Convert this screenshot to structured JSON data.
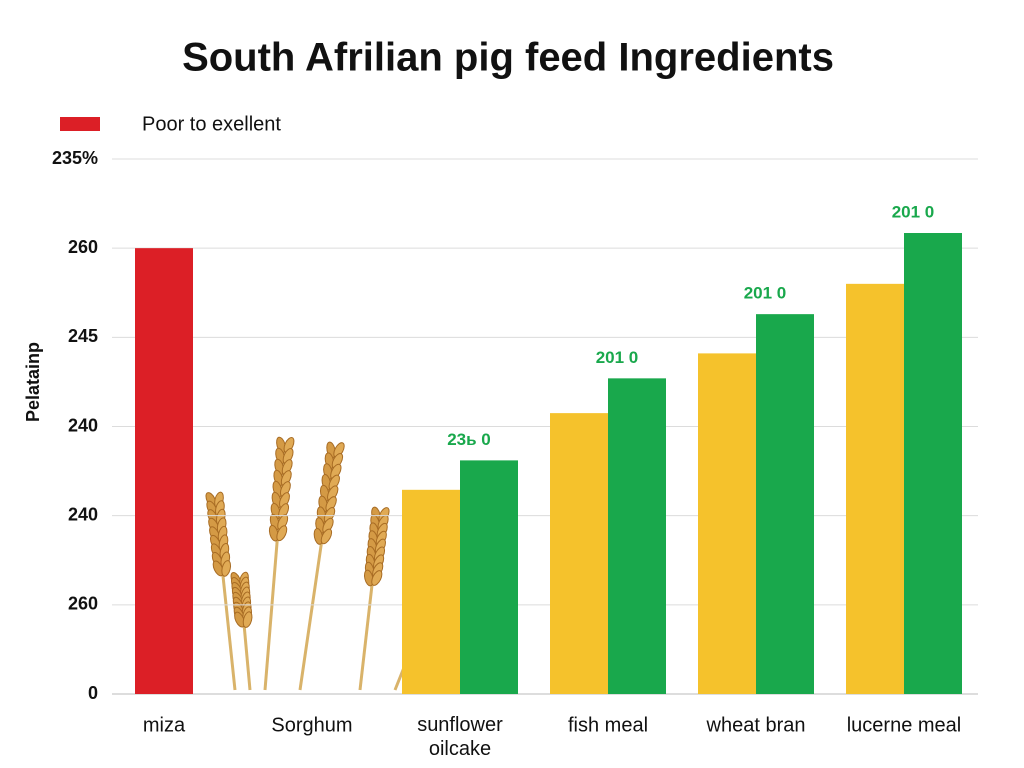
{
  "chart_data": {
    "type": "bar",
    "title": "South Afrilian pig feed Ingredients",
    "y_label": "Pelatainp",
    "categories": [
      "miza",
      "Sorghum",
      "sunflower oilcake",
      "fish meal",
      "wheat bran",
      "lucerne meal"
    ],
    "series": [
      {
        "name": "Poor to exellent",
        "color": "#dc1f26",
        "values": [
          5.0,
          null,
          null,
          null,
          null,
          null
        ]
      },
      {
        "color": "#f5c22c",
        "values": [
          null,
          null,
          2.29,
          3.15,
          3.82,
          4.6
        ]
      },
      {
        "color": "#19a84c",
        "values": [
          null,
          null,
          2.62,
          3.54,
          4.26,
          5.17
        ]
      }
    ],
    "annotations": [
      null,
      null,
      "23ь 0",
      "201 0",
      "201 0",
      "201 0"
    ],
    "ylim": [
      0,
      6
    ],
    "yticks": [
      {
        "value": 0,
        "label": "0"
      },
      {
        "value": 1,
        "label": "260"
      },
      {
        "value": 2,
        "label": "240"
      },
      {
        "value": 3,
        "label": "240"
      },
      {
        "value": 4,
        "label": "245"
      },
      {
        "value": 5,
        "label": "260"
      },
      {
        "value": 6,
        "label": "235%"
      }
    ],
    "grid": true
  }
}
